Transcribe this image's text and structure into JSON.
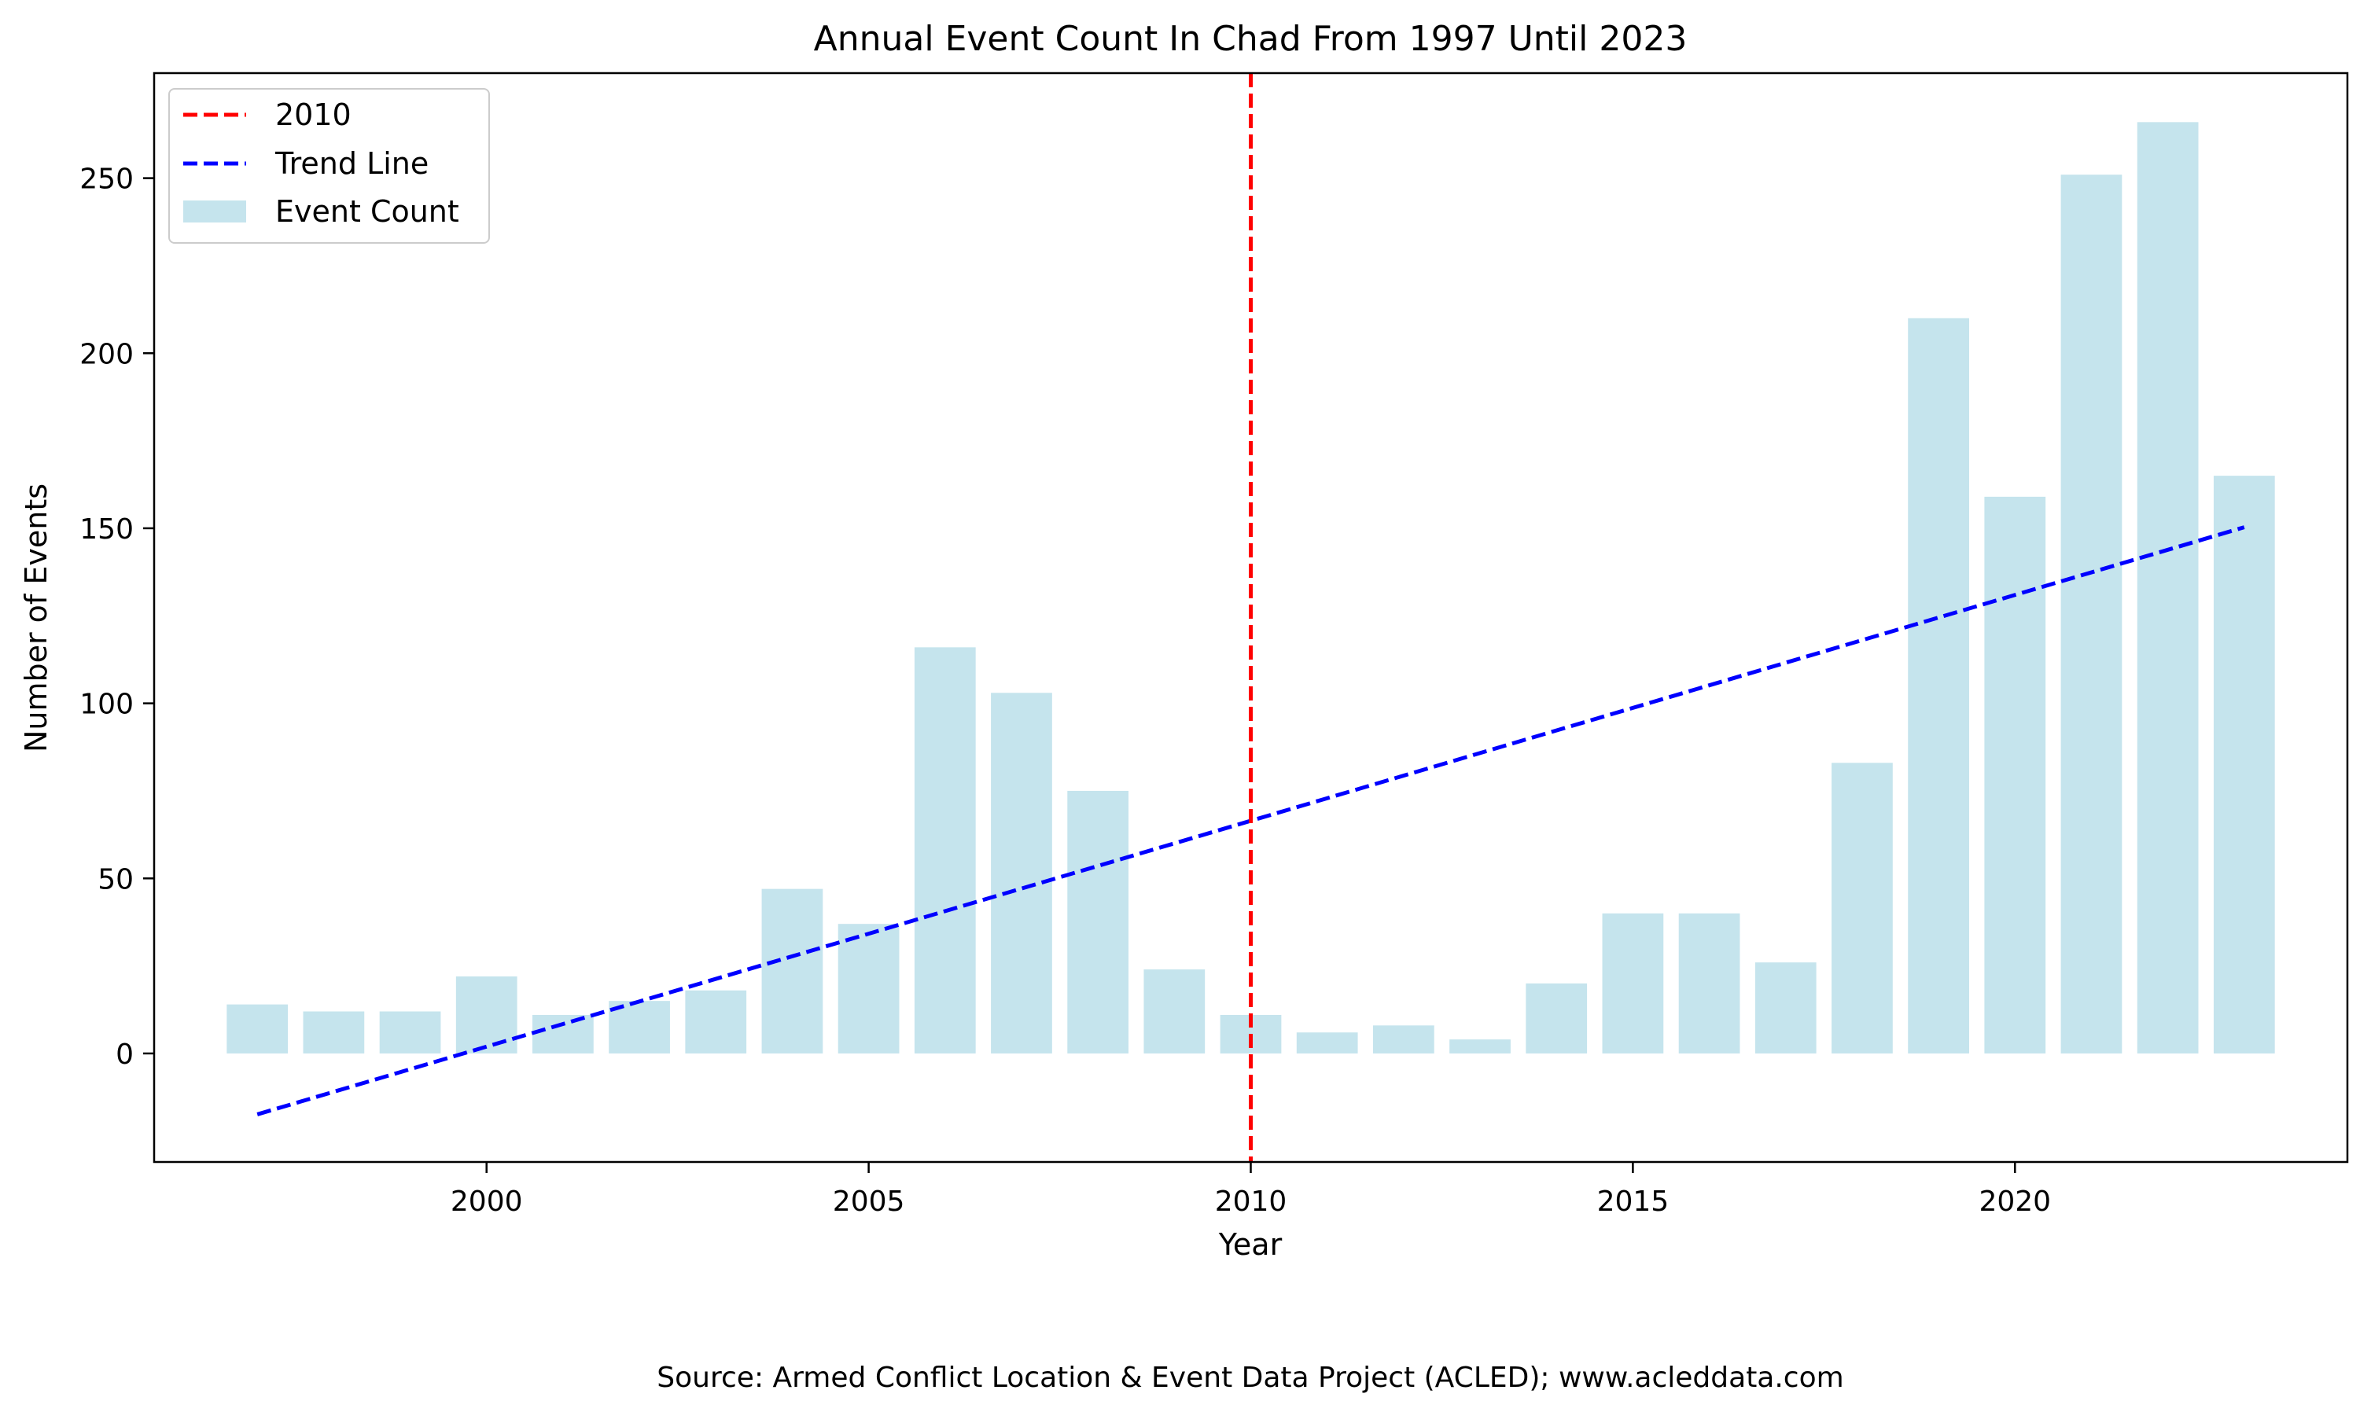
{
  "chart_data": {
    "type": "bar",
    "title": "Annual Event Count In Chad From 1997 Until 2023",
    "xlabel": "Year",
    "ylabel": "Number of Events",
    "xlim": [
      1995.65,
      2024.35
    ],
    "ylim": [
      -31,
      280
    ],
    "x": [
      1997,
      1998,
      1999,
      2000,
      2001,
      2002,
      2003,
      2004,
      2005,
      2006,
      2007,
      2008,
      2009,
      2010,
      2011,
      2012,
      2013,
      2014,
      2015,
      2016,
      2017,
      2018,
      2019,
      2020,
      2021,
      2022,
      2023
    ],
    "series": [
      {
        "name": "Event Count",
        "type": "bar",
        "color": "#add8e6",
        "values": [
          14,
          12,
          12,
          22,
          11,
          15,
          18,
          47,
          37,
          116,
          103,
          75,
          24,
          11,
          6,
          8,
          4,
          20,
          40,
          40,
          26,
          83,
          210,
          159,
          251,
          266,
          165
        ]
      },
      {
        "name": "Trend Line",
        "type": "line",
        "style": "dashed",
        "color": "#0000ff",
        "x": [
          1997,
          2023
        ],
        "values": [
          -17.4,
          150.3
        ]
      }
    ],
    "annotations": [
      {
        "name": "2010",
        "type": "vline",
        "style": "dashed",
        "color": "#ff0000",
        "x": 2010
      }
    ],
    "x_ticks": [
      2000,
      2005,
      2010,
      2015,
      2020
    ],
    "y_ticks": [
      0,
      50,
      100,
      150,
      200,
      250
    ],
    "x_tick_labels": [
      "2000",
      "2005",
      "2010",
      "2015",
      "2020"
    ],
    "y_tick_labels": [
      "0",
      "50",
      "100",
      "150",
      "200",
      "250"
    ],
    "grid": false,
    "legend_position": "top-left",
    "legend": [
      "2010",
      "Trend Line",
      "Event Count"
    ],
    "source": "Source: Armed Conflict Location & Event Data Project (ACLED); www.acleddata.com"
  }
}
